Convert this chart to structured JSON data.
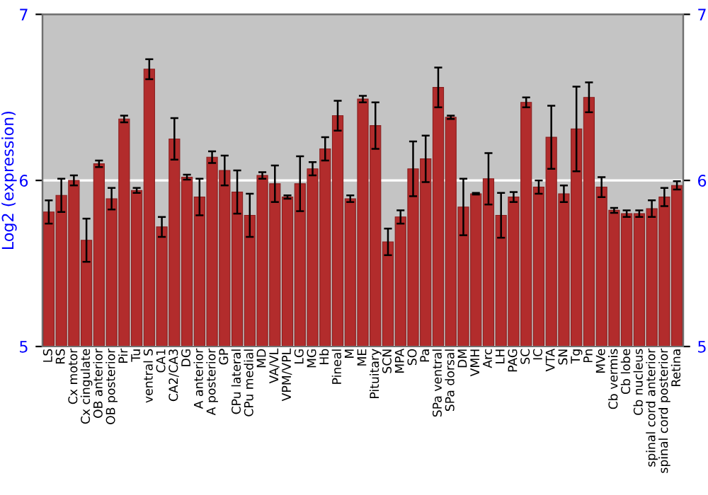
{
  "chart_data": {
    "type": "bar",
    "ylabel": "Log2 (expression)",
    "categories": [
      "LS",
      "RS",
      "Cx motor",
      "Cx cingulate",
      "OB anterior",
      "OB posterior",
      "Pir",
      "Tu",
      "ventral S",
      "CA1",
      "CA2/CA3",
      "DG",
      "A anterior",
      "A posterior",
      "GP",
      "CPu lateral",
      "CPu medial",
      "MD",
      "VA/VL",
      "VPM/VPL",
      "LG",
      "MG",
      "Hb",
      "Pineal",
      "M",
      "ME",
      "Pituitary",
      "SCN",
      "MPA",
      "SO",
      "Pa",
      "SPa ventral",
      "SPa dorsal",
      "DM",
      "VMH",
      "Arc",
      "LH",
      "PAG",
      "SC",
      "IC",
      "VTA",
      "SN",
      "Tg",
      "Pn",
      "MVe",
      "Cb vermis",
      "Cb lobe",
      "Cb nucleus",
      "spinal cord anterior",
      "spinal cord posterior",
      "Retina"
    ],
    "values": [
      5.81,
      5.91,
      6.0,
      5.64,
      6.1,
      5.89,
      6.37,
      5.94,
      6.67,
      5.72,
      6.25,
      6.02,
      5.9,
      6.14,
      6.06,
      5.93,
      5.79,
      6.03,
      5.98,
      5.9,
      5.98,
      6.07,
      6.19,
      6.39,
      5.89,
      6.49,
      6.33,
      5.63,
      5.78,
      6.07,
      6.13,
      6.56,
      6.38,
      5.84,
      5.92,
      6.01,
      5.79,
      5.9,
      6.47,
      5.96,
      6.26,
      5.92,
      6.31,
      6.5,
      5.96,
      5.82,
      5.8,
      5.8,
      5.83,
      5.9,
      5.97
    ],
    "errors": [
      0.07,
      0.1,
      0.03,
      0.13,
      0.02,
      0.065,
      0.02,
      0.015,
      0.06,
      0.06,
      0.125,
      0.015,
      0.11,
      0.035,
      0.09,
      0.13,
      0.13,
      0.02,
      0.11,
      0.01,
      0.165,
      0.04,
      0.07,
      0.09,
      0.02,
      0.02,
      0.14,
      0.08,
      0.04,
      0.165,
      0.14,
      0.12,
      0.01,
      0.17,
      0.005,
      0.155,
      0.135,
      0.03,
      0.03,
      0.04,
      0.19,
      0.05,
      0.255,
      0.09,
      0.06,
      0.015,
      0.02,
      0.02,
      0.05,
      0.055,
      0.025
    ],
    "color": "#b22c2c",
    "ylim": [
      5,
      7
    ],
    "yticks": [
      5,
      6,
      7
    ],
    "y2lim": [
      5,
      7
    ],
    "y2ticks": [
      5,
      6,
      7
    ],
    "grid": "y"
  }
}
